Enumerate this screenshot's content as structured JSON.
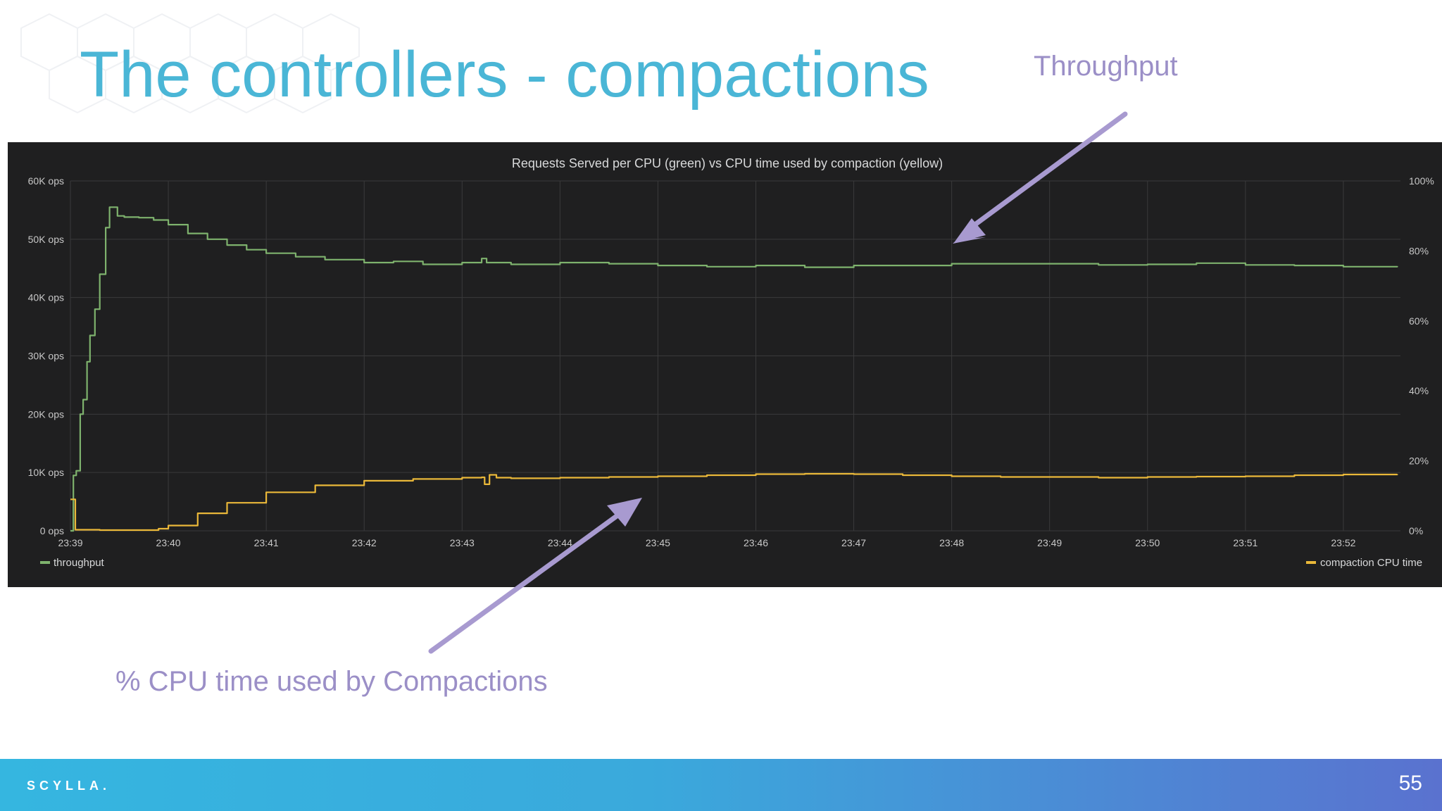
{
  "slide": {
    "title": "The controllers - compactions",
    "annotation_throughput": "Throughput",
    "annotation_cpu": "% CPU time used by Compactions",
    "footer_logo": "SCYLLA.",
    "page_number": "55",
    "colors": {
      "title": "#4ab6d6",
      "annotation": "#9b8fc7",
      "arrow": "#a89ad0",
      "panel_bg": "#1f1f20"
    }
  },
  "chart_data": {
    "type": "line",
    "title": "Requests Served per CPU (green) vs CPU time used by compaction (yellow)",
    "x_tick_labels": [
      "23:39",
      "23:40",
      "23:41",
      "23:42",
      "23:43",
      "23:44",
      "23:45",
      "23:46",
      "23:47",
      "23:48",
      "23:49",
      "23:50",
      "23:51",
      "23:52"
    ],
    "xlim": [
      "23:39",
      "23:52:35"
    ],
    "y_left": {
      "ticks": [
        "0 ops",
        "10K ops",
        "20K ops",
        "30K ops",
        "40K ops",
        "50K ops",
        "60K ops"
      ],
      "ylim": [
        0,
        60000
      ],
      "unit": "ops"
    },
    "y_right": {
      "ticks": [
        "0%",
        "20%",
        "40%",
        "60%",
        "80%",
        "100%"
      ],
      "ylim": [
        0,
        100
      ],
      "unit": "%"
    },
    "grid": true,
    "legend": {
      "left_label": "throughput",
      "right_label": "compaction CPU time",
      "placement": "bottom"
    },
    "series": [
      {
        "name": "throughput",
        "axis": "left",
        "color": "#7eb26d",
        "x": [
          0.0,
          0.03,
          0.06,
          0.1,
          0.13,
          0.17,
          0.2,
          0.25,
          0.3,
          0.36,
          0.4,
          0.45,
          0.48,
          0.55,
          0.7,
          0.85,
          1.0,
          1.2,
          1.4,
          1.6,
          1.8,
          2.0,
          2.3,
          2.6,
          3.0,
          3.3,
          3.6,
          4.0,
          4.2,
          4.25,
          4.5,
          5.0,
          5.5,
          6.0,
          6.5,
          7.0,
          7.5,
          8.0,
          8.5,
          9.0,
          9.5,
          10.0,
          10.5,
          11.0,
          11.5,
          12.0,
          12.5,
          13.0,
          13.55
        ],
        "y": [
          0,
          9500,
          10300,
          20000,
          22500,
          29000,
          33500,
          38000,
          44000,
          52000,
          55500,
          55500,
          54000,
          53800,
          53700,
          53300,
          52500,
          51000,
          50000,
          49000,
          48200,
          47600,
          47000,
          46500,
          46000,
          46200,
          45700,
          46000,
          46700,
          46000,
          45700,
          46000,
          45800,
          45500,
          45300,
          45500,
          45200,
          45500,
          45500,
          45800,
          45800,
          45800,
          45600,
          45700,
          45900,
          45600,
          45500,
          45300,
          45400
        ]
      },
      {
        "name": "compaction CPU time",
        "axis": "right",
        "color": "#eab839",
        "x": [
          0.0,
          0.02,
          0.05,
          0.3,
          0.6,
          0.9,
          1.0,
          1.3,
          1.6,
          2.0,
          2.5,
          3.0,
          3.5,
          4.0,
          4.2,
          4.23,
          4.28,
          4.35,
          4.5,
          5.0,
          5.5,
          6.0,
          6.5,
          7.0,
          7.5,
          8.0,
          8.5,
          9.0,
          9.5,
          10.0,
          10.5,
          11.0,
          11.5,
          12.0,
          12.5,
          13.0,
          13.55
        ],
        "y": [
          9,
          9,
          0.3,
          0.2,
          0.2,
          0.6,
          1.5,
          5,
          8,
          11,
          13,
          14.3,
          14.8,
          15.2,
          15.3,
          13.3,
          16,
          15.2,
          15.0,
          15.2,
          15.4,
          15.6,
          15.9,
          16.2,
          16.3,
          16.2,
          15.9,
          15.6,
          15.4,
          15.4,
          15.2,
          15.4,
          15.5,
          15.6,
          15.9,
          16.1,
          16.2
        ]
      }
    ]
  }
}
